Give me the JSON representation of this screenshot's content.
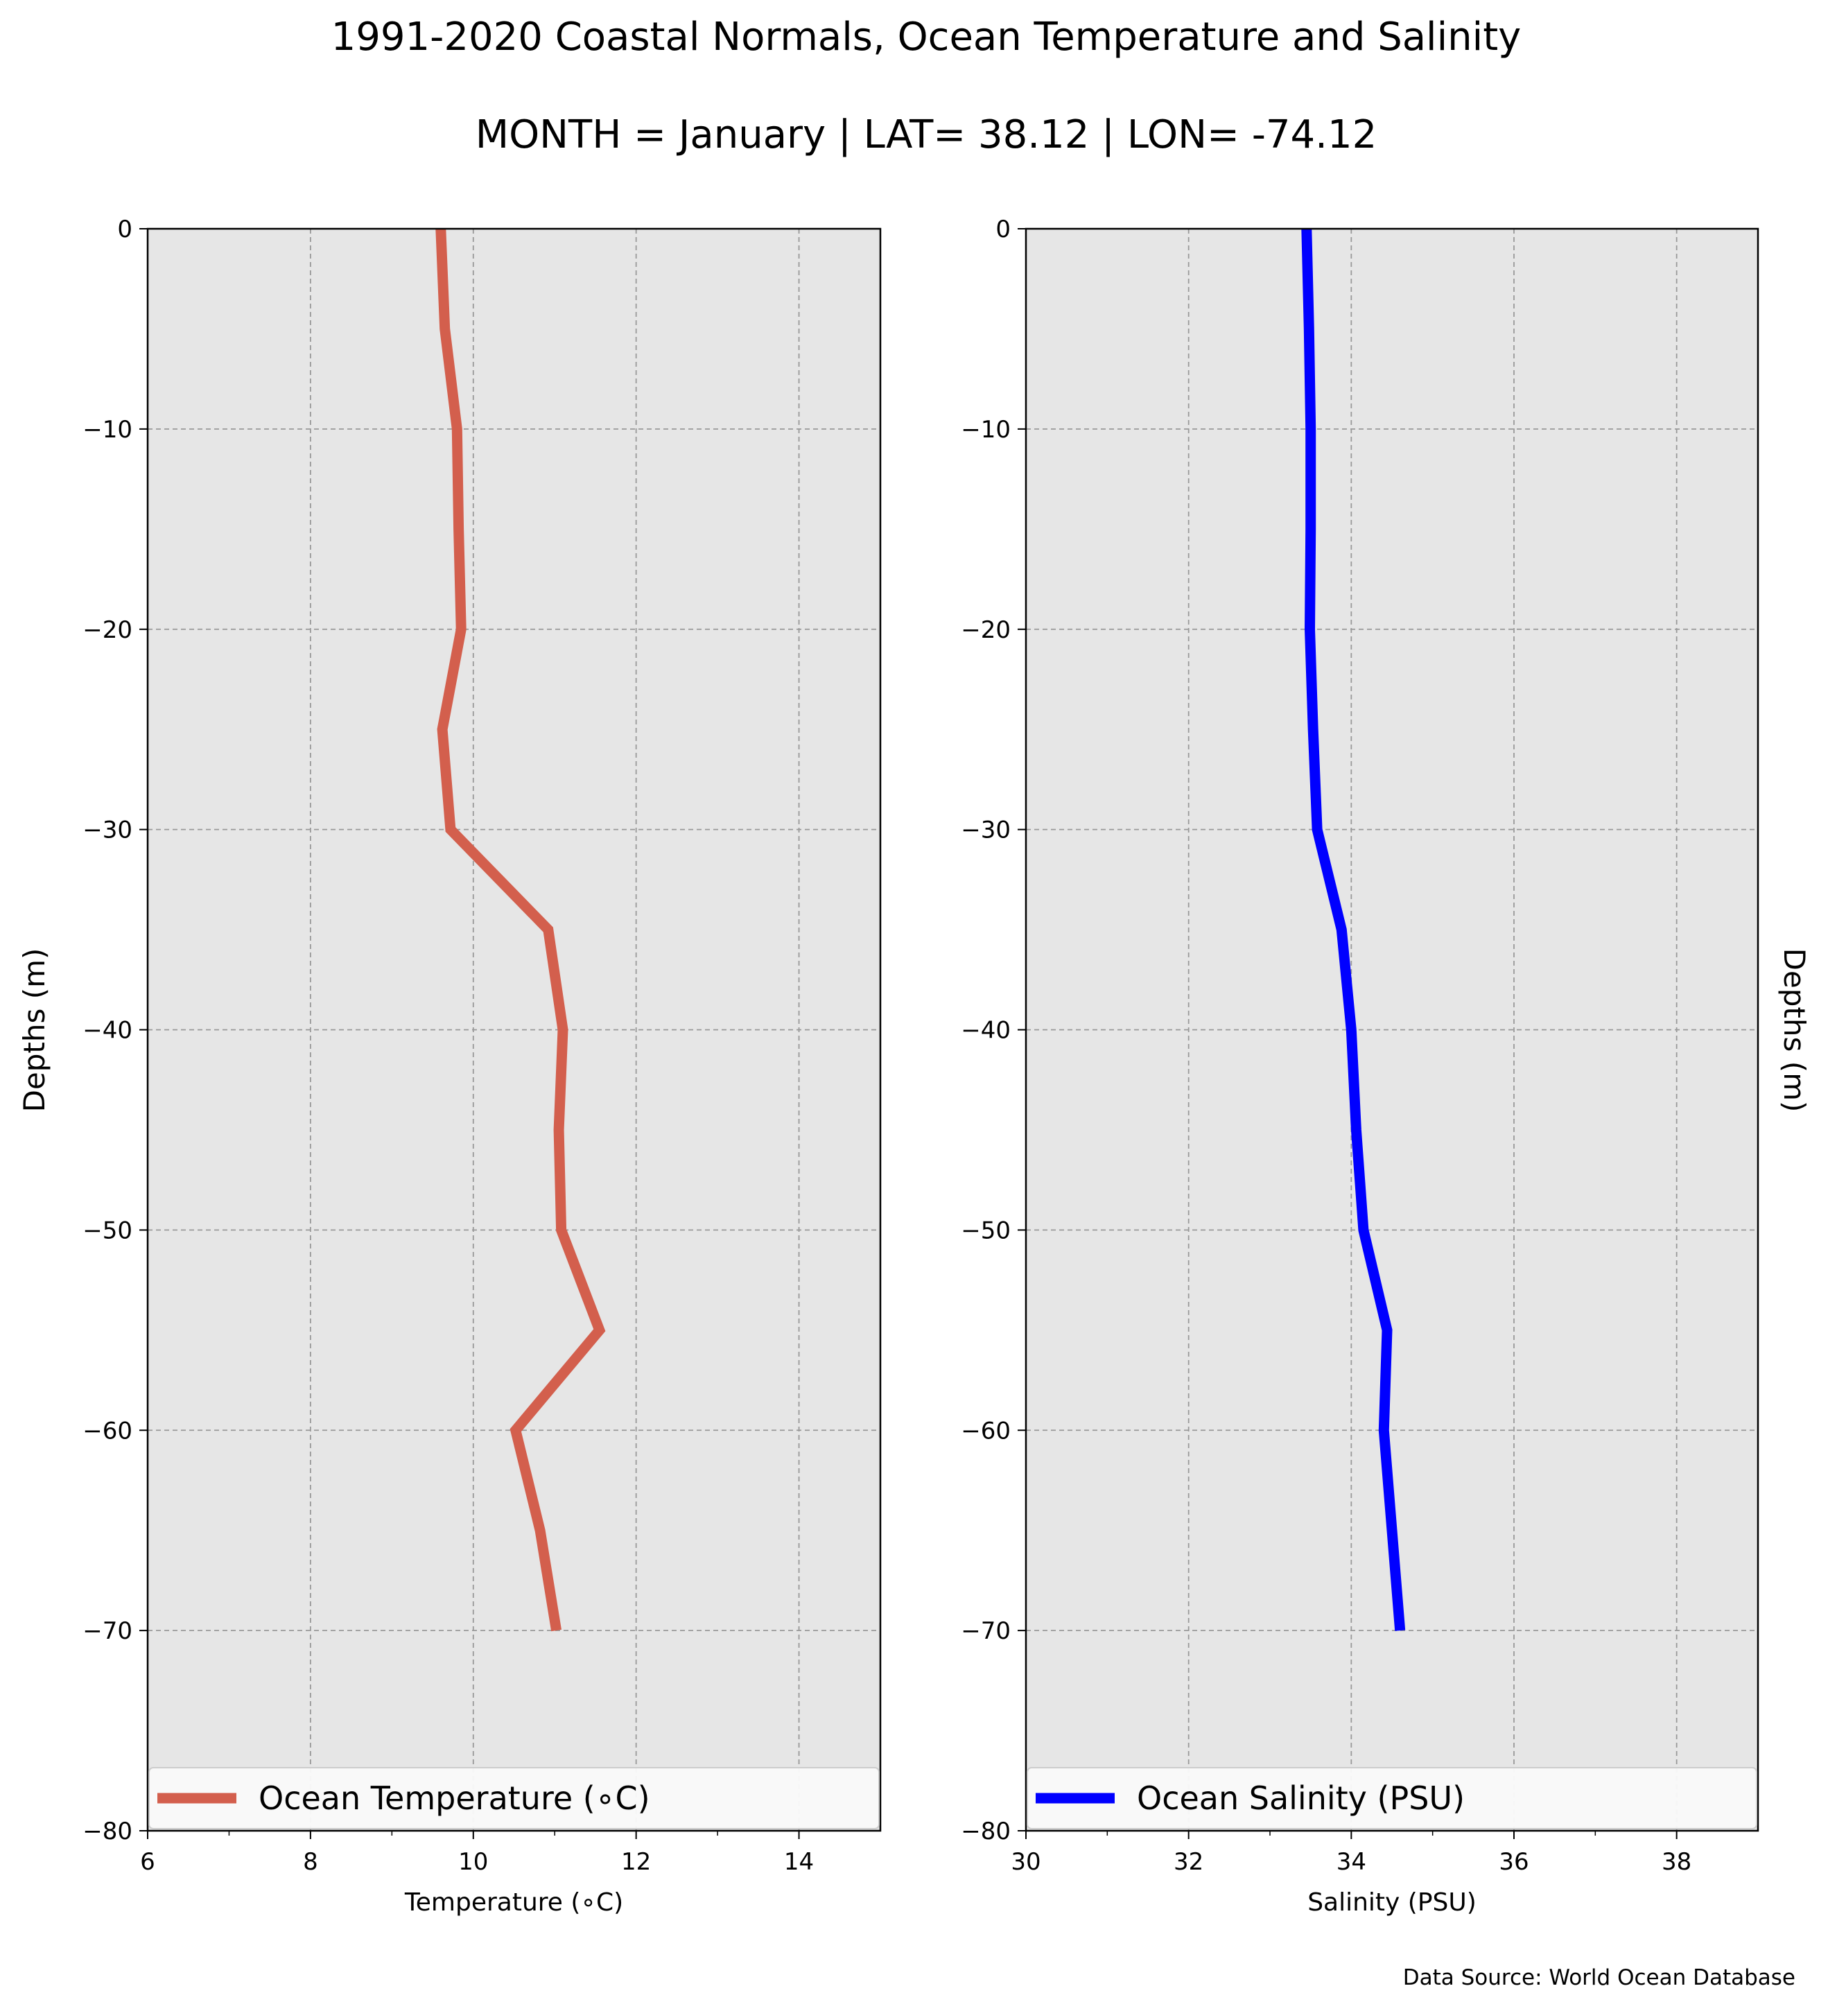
{
  "title": "1991-2020 Coastal Normals, Ocean Temperature and Salinity",
  "subtitle": "MONTH = January | LAT= 38.12 | LON= -74.12",
  "source_note": "Data Source: World Ocean Database",
  "colors": {
    "plot_bg": "#e6e6e6",
    "grid": "#999999",
    "temperature": "#d35f4d",
    "salinity": "#0000ff"
  },
  "chart_data": [
    {
      "type": "line",
      "xlabel": "Temperature (∘C)",
      "ylabel": "Depths (m)",
      "xlim": [
        6,
        15
      ],
      "ylim": [
        -80,
        0
      ],
      "xticks": [
        6,
        8,
        10,
        12,
        14
      ],
      "xtick_labels": [
        "6",
        "8",
        "10",
        "12",
        "14"
      ],
      "yticks": [
        0,
        -10,
        -20,
        -30,
        -40,
        -50,
        -60,
        -70,
        -80
      ],
      "ytick_labels": [
        "0",
        "−10",
        "−20",
        "−30",
        "−40",
        "−50",
        "−60",
        "−70",
        "−80"
      ],
      "grid": true,
      "legend_position": "lower-left",
      "series": [
        {
          "name": "Ocean Temperature (∘C)",
          "color": "#d35f4d",
          "x": [
            9.6,
            9.65,
            9.8,
            9.82,
            9.85,
            9.62,
            9.72,
            10.92,
            11.1,
            11.05,
            11.08,
            11.55,
            10.52,
            10.82,
            11.02
          ],
          "y": [
            0,
            -5,
            -10,
            -15,
            -20,
            -25,
            -30,
            -35,
            -40,
            -45,
            -50,
            -55,
            -60,
            -65,
            -70
          ]
        }
      ]
    },
    {
      "type": "line",
      "xlabel": "Salinity (PSU)",
      "ylabel": "Depths (m)",
      "xlim": [
        30,
        39
      ],
      "ylim": [
        -80,
        0
      ],
      "xticks": [
        30,
        32,
        34,
        36,
        38
      ],
      "xtick_labels": [
        "30",
        "32",
        "34",
        "36",
        "38"
      ],
      "yticks": [
        0,
        -10,
        -20,
        -30,
        -40,
        -50,
        -60,
        -70,
        -80
      ],
      "ytick_labels": [
        "0",
        "−10",
        "−20",
        "−30",
        "−40",
        "−50",
        "−60",
        "−70",
        "−80"
      ],
      "grid": true,
      "legend_position": "lower-left",
      "series": [
        {
          "name": "Ocean Salinity (PSU)",
          "color": "#0000ff",
          "x": [
            33.45,
            33.48,
            33.5,
            33.5,
            33.49,
            33.53,
            33.58,
            33.88,
            34.0,
            34.06,
            34.15,
            34.44,
            34.4,
            34.5,
            34.6
          ],
          "y": [
            0,
            -5,
            -10,
            -15,
            -20,
            -25,
            -30,
            -35,
            -40,
            -45,
            -50,
            -55,
            -60,
            -65,
            -70
          ]
        }
      ]
    }
  ]
}
